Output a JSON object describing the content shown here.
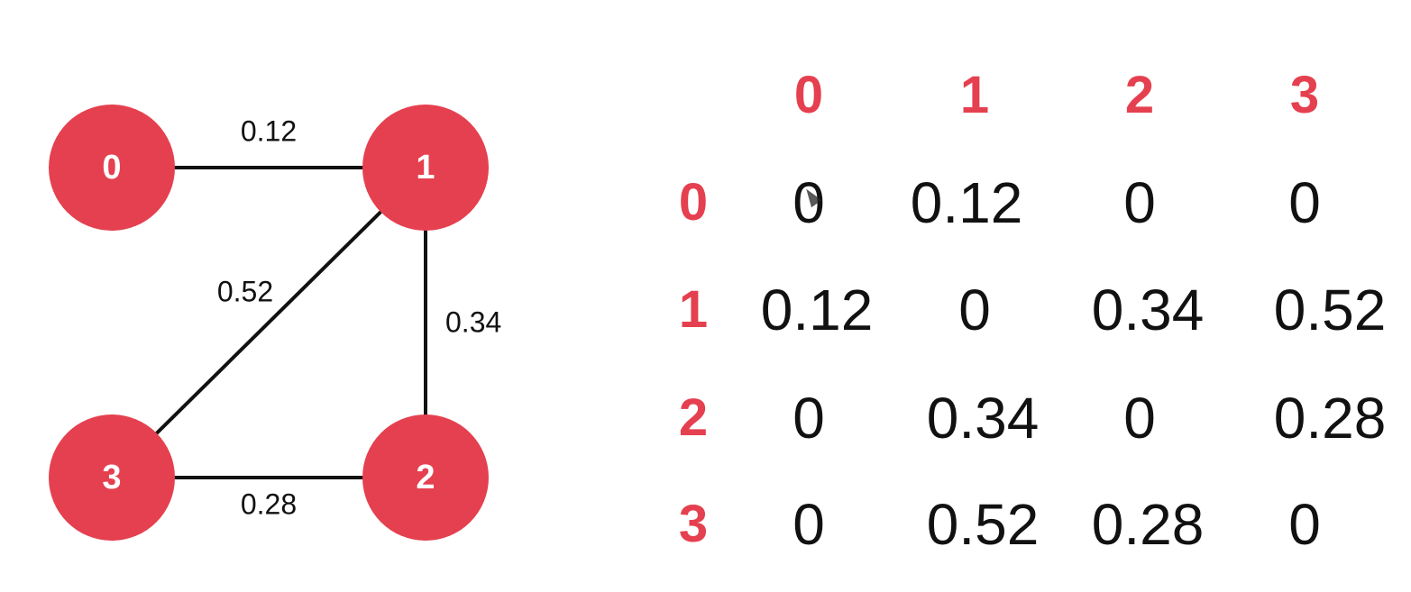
{
  "graph": {
    "nodes": [
      {
        "id": "0",
        "label": "0"
      },
      {
        "id": "1",
        "label": "1"
      },
      {
        "id": "2",
        "label": "2"
      },
      {
        "id": "3",
        "label": "3"
      }
    ],
    "edges": [
      {
        "from": "0",
        "to": "1",
        "weight": "0.12"
      },
      {
        "from": "1",
        "to": "3",
        "weight": "0.52"
      },
      {
        "from": "1",
        "to": "2",
        "weight": "0.34"
      },
      {
        "from": "3",
        "to": "2",
        "weight": "0.28"
      }
    ],
    "node_color": "#e5404f",
    "node_text_color": "#ffffff",
    "edge_color": "#111111"
  },
  "matrix": {
    "column_headers": [
      "0",
      "1",
      "2",
      "3"
    ],
    "row_headers": [
      "0",
      "1",
      "2",
      "3"
    ],
    "rows": [
      [
        "0",
        "0.12",
        "0",
        "0"
      ],
      [
        "0.12",
        "0",
        "0.34",
        "0.52"
      ],
      [
        "0",
        "0.34",
        "0",
        "0.28"
      ],
      [
        "0",
        "0.52",
        "0.28",
        "0"
      ]
    ],
    "header_color": "#e5404f",
    "value_color": "#111111"
  }
}
